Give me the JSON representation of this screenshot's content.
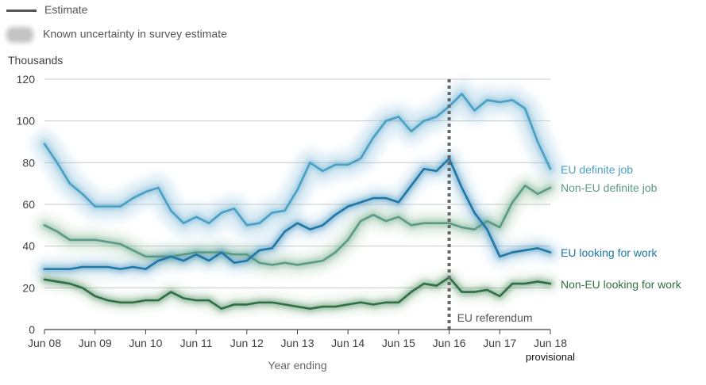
{
  "legend": {
    "estimate_label": "Estimate",
    "uncertainty_label": "Known uncertainty in survey estimate"
  },
  "colors": {
    "eu_definite": "#4a9fc4",
    "noneu_definite": "#5b9b86",
    "eu_looking": "#1f77a8",
    "noneu_looking": "#2e6f44",
    "band_blue": "#8fc3e0",
    "band_green": "#9cc8a0",
    "grid": "#c9c9c9",
    "axis": "#414042",
    "referendum": "#666666"
  },
  "chart_data": {
    "type": "line",
    "unit_label": "Thousands",
    "xlabel": "Year ending",
    "ylabel": "",
    "ylim": [
      0,
      120
    ],
    "yticks": [
      0,
      20,
      40,
      60,
      80,
      100,
      120
    ],
    "grid": true,
    "xlim": [
      2008.5,
      2018.5
    ],
    "xticks": [
      {
        "x": 2008.5,
        "label": "Jun 08"
      },
      {
        "x": 2009.5,
        "label": "Jun 09"
      },
      {
        "x": 2010.5,
        "label": "Jun 10"
      },
      {
        "x": 2011.5,
        "label": "Jun 11"
      },
      {
        "x": 2012.5,
        "label": "Jun 12"
      },
      {
        "x": 2013.5,
        "label": "Jun 13"
      },
      {
        "x": 2014.5,
        "label": "Jun 14"
      },
      {
        "x": 2015.5,
        "label": "Jun 15"
      },
      {
        "x": 2016.5,
        "label": "Jun 16"
      },
      {
        "x": 2017.5,
        "label": "Jun 17"
      },
      {
        "x": 2018.5,
        "label": "Jun 18"
      }
    ],
    "provisional_label": "provisional",
    "x": [
      2008.5,
      2008.75,
      2009.0,
      2009.25,
      2009.5,
      2009.75,
      2010.0,
      2010.25,
      2010.5,
      2010.75,
      2011.0,
      2011.25,
      2011.5,
      2011.75,
      2012.0,
      2012.25,
      2012.5,
      2012.75,
      2013.0,
      2013.25,
      2013.5,
      2013.75,
      2014.0,
      2014.25,
      2014.5,
      2014.75,
      2015.0,
      2015.25,
      2015.5,
      2015.75,
      2016.0,
      2016.25,
      2016.5,
      2016.75,
      2017.0,
      2017.25,
      2017.5,
      2017.75,
      2018.0,
      2018.25,
      2018.5
    ],
    "series": [
      {
        "name": "EU definite job",
        "values": [
          89,
          80,
          70,
          65,
          59,
          59,
          59,
          63,
          66,
          68,
          57,
          51,
          54,
          51,
          56,
          58,
          50,
          51,
          56,
          57,
          67,
          80,
          76,
          79,
          79,
          82,
          92,
          100,
          102,
          95,
          100,
          102,
          107,
          113,
          105,
          110,
          109,
          110,
          106,
          90,
          77
        ]
      },
      {
        "name": "Non-EU definite job",
        "values": [
          50,
          47,
          43,
          43,
          43,
          42,
          41,
          38,
          35,
          35,
          35,
          36,
          37,
          37,
          37,
          36,
          36,
          32,
          31,
          32,
          31,
          32,
          33,
          37,
          43,
          52,
          55,
          52,
          54,
          50,
          51,
          51,
          51,
          49,
          48,
          52,
          49,
          61,
          69,
          65,
          68
        ]
      },
      {
        "name": "EU looking for work",
        "values": [
          29,
          29,
          29,
          30,
          30,
          30,
          29,
          30,
          29,
          33,
          35,
          33,
          36,
          33,
          37,
          32,
          33,
          38,
          39,
          47,
          51,
          48,
          50,
          55,
          59,
          61,
          63,
          63,
          61,
          69,
          77,
          76,
          82,
          68,
          56,
          48,
          35,
          37,
          38,
          39,
          37
        ]
      },
      {
        "name": "Non-EU looking for work",
        "values": [
          24,
          23,
          22,
          20,
          16,
          14,
          13,
          13,
          14,
          14,
          18,
          15,
          14,
          14,
          10,
          12,
          12,
          13,
          13,
          12,
          11,
          10,
          11,
          11,
          12,
          13,
          12,
          13,
          13,
          18,
          22,
          21,
          25,
          18,
          18,
          19,
          16,
          22,
          22,
          23,
          22
        ]
      }
    ],
    "annotation": {
      "x": 2016.5,
      "label": "EU referendum"
    }
  }
}
